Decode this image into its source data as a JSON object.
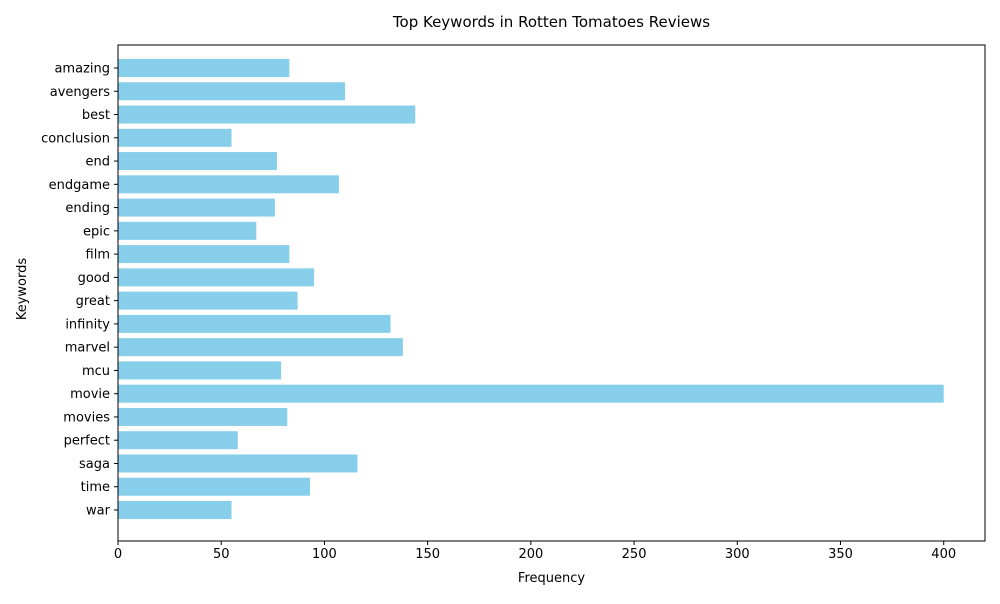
{
  "chart_data": {
    "type": "bar",
    "orientation": "horizontal",
    "title": "Top Keywords in Rotten Tomatoes Reviews",
    "xlabel": "Frequency",
    "ylabel": "Keywords",
    "categories": [
      "amazing",
      "avengers",
      "best",
      "conclusion",
      "end",
      "endgame",
      "ending",
      "epic",
      "film",
      "good",
      "great",
      "infinity",
      "marvel",
      "mcu",
      "movie",
      "movies",
      "perfect",
      "saga",
      "time",
      "war"
    ],
    "values": [
      83,
      110,
      144,
      55,
      77,
      107,
      76,
      67,
      83,
      95,
      87,
      132,
      138,
      79,
      400,
      82,
      58,
      116,
      93,
      55
    ],
    "xlim": [
      0,
      420
    ],
    "xticks": [
      0,
      50,
      100,
      150,
      200,
      250,
      300,
      350,
      400
    ],
    "grid": false,
    "bar_color": "#87CEEB"
  }
}
